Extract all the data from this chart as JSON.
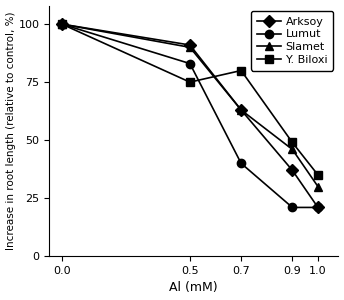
{
  "x": [
    0.0,
    0.5,
    0.7,
    0.9,
    1.0
  ],
  "series": {
    "Arksoy": [
      100,
      91,
      63,
      37,
      21
    ],
    "Lumut": [
      100,
      83,
      40,
      21,
      21
    ],
    "Slamet": [
      100,
      90,
      63,
      46,
      30
    ],
    "Y. Biloxi": [
      100,
      75,
      80,
      49,
      35
    ]
  },
  "markers": {
    "Arksoy": "D",
    "Lumut": "o",
    "Slamet": "^",
    "Y. Biloxi": "s"
  },
  "xlabel": "Al (mM)",
  "ylabel": "Increase in root length (relative to control, %)",
  "xlim": [
    -0.05,
    1.08
  ],
  "ylim": [
    0,
    108
  ],
  "yticks": [
    0,
    25,
    50,
    75,
    100
  ],
  "xticks": [
    0.0,
    0.5,
    0.7,
    0.9,
    1.0
  ],
  "color": "black",
  "markersize": 6,
  "linewidth": 1.2
}
